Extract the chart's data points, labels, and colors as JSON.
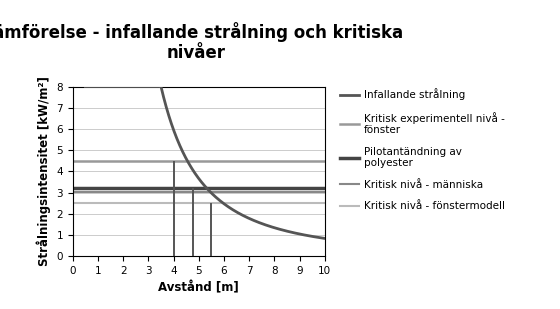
{
  "title": "Jämförelse - infallande strålning och kritiska\nnivåer",
  "xlabel": "Avstånd [m]",
  "ylabel": "Strålningsintensitet [kW/m²]",
  "xlim": [
    0,
    10
  ],
  "ylim": [
    0,
    8
  ],
  "xticks": [
    0,
    1,
    2,
    3,
    4,
    5,
    6,
    7,
    8,
    9,
    10
  ],
  "yticks": [
    0,
    1,
    2,
    3,
    4,
    5,
    6,
    7,
    8
  ],
  "curve_color": "#555555",
  "curve_lw": 2.0,
  "curve_C": 78.97,
  "curve_a": -0.358,
  "curve_xstart": 0.5,
  "hline_kritisk_exp": 4.5,
  "hline_kritisk_exp_color": "#999999",
  "hline_kritisk_exp_lw": 1.8,
  "hline_pilotantandning": 3.2,
  "hline_pilotantandning_color": "#444444",
  "hline_pilotantandning_lw": 2.5,
  "hline_manniska": 3.05,
  "hline_manniska_color": "#888888",
  "hline_manniska_lw": 1.5,
  "hline_fonstermodell": 2.5,
  "hline_fonstermodell_color": "#bbbbbb",
  "hline_fonstermodell_lw": 1.5,
  "vline_x1": 4.0,
  "vline_x2": 4.75,
  "vline_x3": 5.5,
  "vline_color": "#555555",
  "vline_lw": 1.4,
  "background_color": "#ffffff",
  "legend_labels": [
    "Infallande strålning",
    "Kritisk experimentell nivå -\nfönster",
    "Pilotantändning av\npolyester",
    "Kritisk nivå - människa",
    "Kritisk nivå - fönstermodell"
  ],
  "legend_colors": [
    "#555555",
    "#999999",
    "#444444",
    "#888888",
    "#bbbbbb"
  ],
  "legend_lws": [
    2.0,
    1.8,
    2.5,
    1.5,
    1.5
  ],
  "title_fontsize": 12,
  "axis_label_fontsize": 8.5,
  "tick_fontsize": 7.5,
  "legend_fontsize": 7.5
}
